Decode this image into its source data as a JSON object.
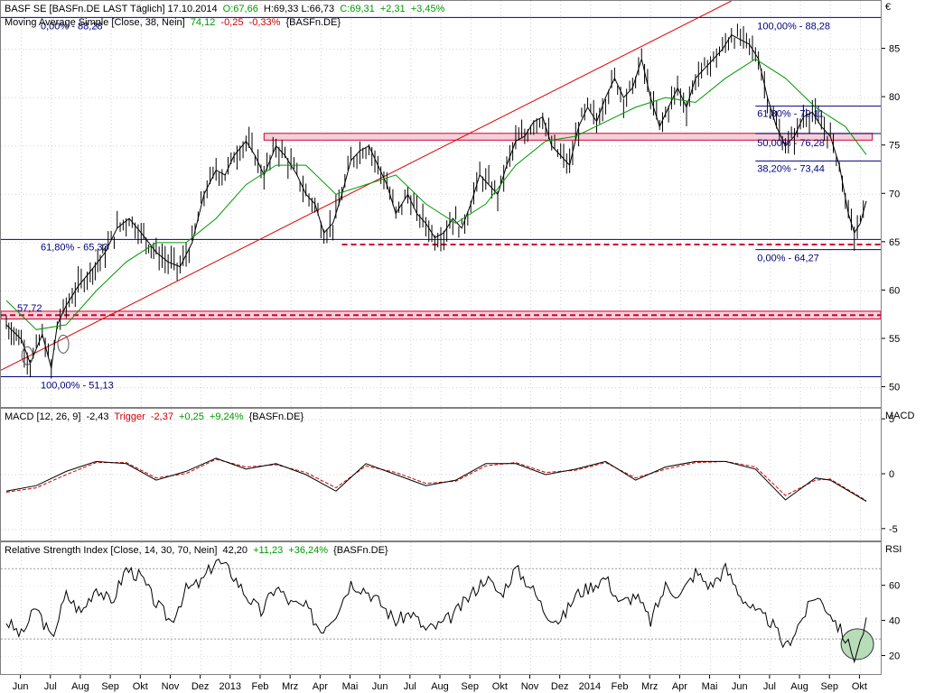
{
  "legends": {
    "price": {
      "symbol": "BASF SE [BASFn.DE LAST Täglich] 17.10.2014",
      "open": "O:67,66",
      "high_low": "H:69,33 L:66,73",
      "close": "C:69,31",
      "change": "+2,31",
      "change_pct": "+3,45%"
    },
    "ma": {
      "label": "Moving Average Simple [Close, 38, Nein]",
      "value": "74,12",
      "change": "-0,25",
      "change_pct": "-0,33%",
      "symbol": "{BASFn.DE}"
    },
    "macd": {
      "label": "MACD [12, 26, 9]",
      "value": "-2,43",
      "trigger_label": "Trigger",
      "trigger_value": "-2,37",
      "change": "+0,25",
      "change_pct": "+9,24%",
      "symbol": "{BASFn.DE}"
    },
    "rsi": {
      "label": "Relative Strength Index [Close, 14, 30, 70, Nein]",
      "value": "42,20",
      "change": "+11,23",
      "change_pct": "+36,24%",
      "symbol": "{BASFn.DE}"
    }
  },
  "currency_label": "€",
  "macd_axis_label": "MACD",
  "rsi_axis_label": "RSI",
  "annotations": {
    "top_left": "0,00% - 88,28",
    "top_right": "100,00% - 88,28",
    "fib_6180_left": "61,80% - 65,32",
    "fib_5772": "57,72",
    "fib_bottom": "100,00% - 51,13",
    "fib_6180_right": "61,80% - 79,11",
    "fib_5000": "50,00% - 76,28",
    "fib_3820": "38,20% - 73,44",
    "fib_0000_right": "0,00% - 64,27"
  },
  "colors": {
    "price_bar": "#000000",
    "ma_line": "#009900",
    "trend_line": "#dd0000",
    "fib_line": "#000080",
    "zone_fill": "#f5d0d8",
    "zone_line": "#cc0033",
    "macd_line": "#000000",
    "trigger_line": "#cc0000",
    "rsi_line": "#000000",
    "rsi_circle": "#b8dcb8"
  },
  "chart_data": [
    {
      "type": "line",
      "pane": "price",
      "ylim": [
        48,
        90
      ],
      "yticks": [
        50,
        55,
        60,
        65,
        70,
        75,
        80,
        85
      ],
      "x_months": [
        "Jun",
        "Jul",
        "Aug",
        "Sep",
        "Okt",
        "Nov",
        "Dez",
        "2013",
        "Feb",
        "Mrz",
        "Apr",
        "Mai",
        "Jun",
        "Jul",
        "Aug",
        "Sep",
        "Okt",
        "Nov",
        "Dez",
        "2014",
        "Feb",
        "Mrz",
        "Apr",
        "Mai",
        "Jun",
        "Jul",
        "Aug",
        "Sep",
        "Okt"
      ],
      "x_range": [
        0,
        29
      ],
      "series": [
        {
          "kind": "close",
          "points": [
            [
              0,
              56.5
            ],
            [
              0.5,
              55
            ],
            [
              0.8,
              52.5
            ],
            [
              1.2,
              55.5
            ],
            [
              1.5,
              52
            ],
            [
              1.7,
              56.5
            ],
            [
              2.0,
              58.5
            ],
            [
              2.4,
              60.5
            ],
            [
              2.8,
              62
            ],
            [
              3.3,
              64
            ],
            [
              3.7,
              66.5
            ],
            [
              4.1,
              67.5
            ],
            [
              4.5,
              66
            ],
            [
              5.0,
              64
            ],
            [
              5.4,
              63
            ],
            [
              5.8,
              62.5
            ],
            [
              6.2,
              65
            ],
            [
              6.6,
              70
            ],
            [
              7.0,
              72.5
            ],
            [
              7.3,
              72
            ],
            [
              7.6,
              74
            ],
            [
              8.0,
              75.5
            ],
            [
              8.3,
              74
            ],
            [
              8.6,
              72
            ],
            [
              9.0,
              75
            ],
            [
              9.3,
              74
            ],
            [
              9.7,
              72
            ],
            [
              10.0,
              70
            ],
            [
              10.3,
              69
            ],
            [
              10.6,
              66
            ],
            [
              10.9,
              67
            ],
            [
              11.2,
              70
            ],
            [
              11.5,
              73.5
            ],
            [
              11.8,
              74.5
            ],
            [
              12.1,
              75
            ],
            [
              12.4,
              73
            ],
            [
              12.7,
              71
            ],
            [
              13.0,
              68
            ],
            [
              13.4,
              70
            ],
            [
              13.7,
              68
            ],
            [
              14.0,
              67
            ],
            [
              14.3,
              65.5
            ],
            [
              14.6,
              66
            ],
            [
              14.9,
              67.5
            ],
            [
              15.2,
              66.5
            ],
            [
              15.5,
              69
            ],
            [
              15.8,
              72
            ],
            [
              16.1,
              71
            ],
            [
              16.4,
              70
            ],
            [
              16.7,
              73
            ],
            [
              17.0,
              75.5
            ],
            [
              17.3,
              76
            ],
            [
              17.6,
              77.5
            ],
            [
              17.9,
              78
            ],
            [
              18.2,
              75
            ],
            [
              18.5,
              74
            ],
            [
              18.8,
              73
            ],
            [
              19.1,
              77
            ],
            [
              19.4,
              79
            ],
            [
              19.7,
              77.5
            ],
            [
              20.0,
              80
            ],
            [
              20.3,
              82
            ],
            [
              20.6,
              80
            ],
            [
              20.9,
              81
            ],
            [
              21.2,
              84
            ],
            [
              21.5,
              80
            ],
            [
              21.8,
              77
            ],
            [
              22.1,
              79
            ],
            [
              22.4,
              81
            ],
            [
              22.7,
              79
            ],
            [
              23.0,
              82
            ],
            [
              23.3,
              83
            ],
            [
              23.6,
              84
            ],
            [
              23.9,
              85
            ],
            [
              24.2,
              86.5
            ],
            [
              24.5,
              86
            ],
            [
              24.8,
              85.5
            ],
            [
              25.1,
              84
            ],
            [
              25.4,
              80
            ],
            [
              25.7,
              77
            ],
            [
              26.0,
              75
            ],
            [
              26.3,
              76
            ],
            [
              26.6,
              78
            ],
            [
              26.9,
              78.5
            ],
            [
              27.2,
              77
            ],
            [
              27.5,
              76
            ],
            [
              27.8,
              73
            ],
            [
              28.1,
              68
            ],
            [
              28.3,
              66
            ],
            [
              28.5,
              67
            ],
            [
              28.7,
              69.3
            ]
          ]
        },
        {
          "kind": "ma38",
          "points": [
            [
              0,
              59
            ],
            [
              1,
              56
            ],
            [
              2,
              56.5
            ],
            [
              3,
              60
            ],
            [
              4,
              63
            ],
            [
              5,
              65
            ],
            [
              6,
              65
            ],
            [
              7,
              67.5
            ],
            [
              8,
              71
            ],
            [
              9,
              73
            ],
            [
              10,
              73
            ],
            [
              11,
              70
            ],
            [
              12,
              71
            ],
            [
              13,
              72
            ],
            [
              14,
              69
            ],
            [
              15,
              67
            ],
            [
              16,
              69
            ],
            [
              17,
              73
            ],
            [
              18,
              75.5
            ],
            [
              19,
              76
            ],
            [
              20,
              77.5
            ],
            [
              21,
              79
            ],
            [
              22,
              80
            ],
            [
              23,
              79.5
            ],
            [
              24,
              82
            ],
            [
              25,
              84
            ],
            [
              26,
              82
            ],
            [
              27,
              79
            ],
            [
              28,
              77
            ],
            [
              28.7,
              74.1
            ]
          ]
        }
      ],
      "levels": [
        88.28,
        65.32,
        64.27,
        57.72,
        51.13,
        79.11,
        76.28,
        73.44
      ]
    },
    {
      "type": "line",
      "pane": "macd",
      "ylim": [
        -6,
        6
      ],
      "yticks": [
        -5,
        0,
        5
      ],
      "series": [
        {
          "name": "MACD",
          "points": [
            [
              0,
              -1.5
            ],
            [
              1,
              -1
            ],
            [
              2,
              0.3
            ],
            [
              3,
              1.2
            ],
            [
              4,
              1
            ],
            [
              5,
              -0.5
            ],
            [
              6,
              0.3
            ],
            [
              7,
              1.5
            ],
            [
              8,
              0.5
            ],
            [
              9,
              1
            ],
            [
              10,
              0
            ],
            [
              11,
              -1.5
            ],
            [
              12,
              1
            ],
            [
              13,
              0
            ],
            [
              14,
              -1
            ],
            [
              15,
              -0.5
            ],
            [
              16,
              1
            ],
            [
              17,
              1
            ],
            [
              18,
              0
            ],
            [
              19,
              0.5
            ],
            [
              20,
              1.2
            ],
            [
              21,
              -0.5
            ],
            [
              22,
              0.7
            ],
            [
              23,
              1.2
            ],
            [
              24,
              1.2
            ],
            [
              25,
              0.5
            ],
            [
              26,
              -2.3
            ],
            [
              27,
              -0.3
            ],
            [
              27.5,
              -0.5
            ],
            [
              28.7,
              -2.43
            ]
          ]
        },
        {
          "name": "Trigger",
          "points": [
            [
              0,
              -1.6
            ],
            [
              1,
              -1.2
            ],
            [
              2,
              0
            ],
            [
              3,
              1.1
            ],
            [
              4,
              1.1
            ],
            [
              5,
              -0.3
            ],
            [
              6,
              0.1
            ],
            [
              7,
              1.4
            ],
            [
              8,
              0.7
            ],
            [
              9,
              0.9
            ],
            [
              10,
              0.2
            ],
            [
              11,
              -1.2
            ],
            [
              12,
              0.8
            ],
            [
              13,
              0.2
            ],
            [
              14,
              -0.8
            ],
            [
              15,
              -0.6
            ],
            [
              16,
              0.8
            ],
            [
              17,
              1.1
            ],
            [
              18,
              0.2
            ],
            [
              19,
              0.4
            ],
            [
              20,
              1.1
            ],
            [
              21,
              -0.3
            ],
            [
              22,
              0.5
            ],
            [
              23,
              1.1
            ],
            [
              24,
              1.2
            ],
            [
              25,
              0.7
            ],
            [
              26,
              -1.9
            ],
            [
              27,
              -0.5
            ],
            [
              27.5,
              -0.4
            ],
            [
              28.7,
              -2.37
            ]
          ]
        }
      ]
    },
    {
      "type": "line",
      "pane": "rsi",
      "ylim": [
        10,
        85
      ],
      "yticks": [
        20,
        40,
        60
      ],
      "levels": [
        30,
        70
      ],
      "series": [
        {
          "name": "RSI",
          "points": [
            [
              0,
              40
            ],
            [
              0.5,
              32
            ],
            [
              1,
              48
            ],
            [
              1.5,
              30
            ],
            [
              2,
              55
            ],
            [
              2.5,
              45
            ],
            [
              3,
              60
            ],
            [
              3.5,
              50
            ],
            [
              4,
              70
            ],
            [
              4.5,
              65
            ],
            [
              5,
              50
            ],
            [
              5.5,
              40
            ],
            [
              6,
              58
            ],
            [
              6.5,
              62
            ],
            [
              7,
              75
            ],
            [
              7.5,
              68
            ],
            [
              8,
              55
            ],
            [
              8.5,
              45
            ],
            [
              9,
              60
            ],
            [
              9.5,
              50
            ],
            [
              10,
              48
            ],
            [
              10.5,
              35
            ],
            [
              11,
              45
            ],
            [
              11.5,
              62
            ],
            [
              12,
              58
            ],
            [
              12.5,
              50
            ],
            [
              13,
              40
            ],
            [
              13.5,
              45
            ],
            [
              14,
              35
            ],
            [
              14.5,
              38
            ],
            [
              15,
              45
            ],
            [
              15.5,
              55
            ],
            [
              16,
              65
            ],
            [
              16.5,
              55
            ],
            [
              17,
              70
            ],
            [
              17.5,
              60
            ],
            [
              18,
              45
            ],
            [
              18.5,
              40
            ],
            [
              19,
              55
            ],
            [
              19.5,
              60
            ],
            [
              20,
              65
            ],
            [
              20.5,
              50
            ],
            [
              21,
              55
            ],
            [
              21.5,
              40
            ],
            [
              22,
              60
            ],
            [
              22.5,
              55
            ],
            [
              23,
              68
            ],
            [
              23.5,
              60
            ],
            [
              24,
              70
            ],
            [
              24.5,
              55
            ],
            [
              25,
              45
            ],
            [
              25.5,
              40
            ],
            [
              26,
              25
            ],
            [
              26.5,
              40
            ],
            [
              27,
              55
            ],
            [
              27.5,
              45
            ],
            [
              28,
              30
            ],
            [
              28.3,
              20
            ],
            [
              28.5,
              28
            ],
            [
              28.7,
              42.2
            ]
          ]
        }
      ]
    }
  ]
}
